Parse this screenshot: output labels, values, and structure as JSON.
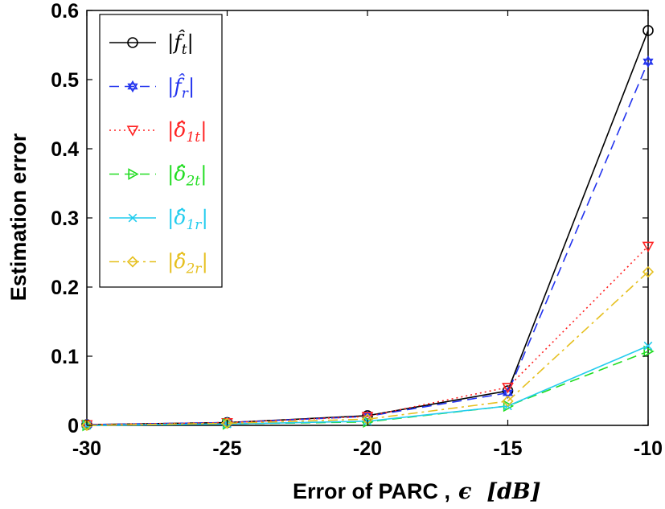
{
  "chart_data": {
    "type": "line",
    "xlabel": "Error of PARC ,",
    "xlabel_math": "ϵ  [dB]",
    "ylabel": "Estimation error",
    "x": [
      -30,
      -25,
      -20,
      -15,
      -10
    ],
    "xlim": [
      -30,
      -10
    ],
    "ylim": [
      0,
      0.6
    ],
    "xticks": [
      "-30",
      "-25",
      "-20",
      "-15",
      "-10"
    ],
    "yticks": [
      "0",
      "0.1",
      "0.2",
      "0.3",
      "0.4",
      "0.5",
      "0.6"
    ],
    "legend_position": "top-left",
    "grid": false,
    "series": [
      {
        "name": "|f̂t|",
        "base": "f̂",
        "sub": "t",
        "values": [
          0.001,
          0.004,
          0.014,
          0.05,
          0.571
        ],
        "color": "#000000",
        "dash": "solid",
        "marker": "circle"
      },
      {
        "name": "|f̂r|",
        "base": "f̂",
        "sub": "r",
        "values": [
          0.001,
          0.004,
          0.013,
          0.047,
          0.526
        ],
        "color": "#2233ee",
        "dash": "dashed",
        "marker": "hexagram"
      },
      {
        "name": "|δ̂1t|",
        "base": "δ̂",
        "sub": "1t",
        "values": [
          0.001,
          0.004,
          0.013,
          0.055,
          0.259
        ],
        "color": "#ff2222",
        "dash": "dotted",
        "marker": "triangle-down"
      },
      {
        "name": "|δ̂2t|",
        "base": "δ̂",
        "sub": "2t",
        "values": [
          0.0,
          0.002,
          0.005,
          0.028,
          0.107
        ],
        "color": "#22dd22",
        "dash": "dashed",
        "marker": "triangle-right"
      },
      {
        "name": "|δ̂1r|",
        "base": "δ̂",
        "sub": "1r",
        "values": [
          0.0,
          0.002,
          0.006,
          0.028,
          0.115
        ],
        "color": "#22ccee",
        "dash": "solid",
        "marker": "x"
      },
      {
        "name": "|δ̂2r|",
        "base": "δ̂",
        "sub": "2r",
        "values": [
          0.0,
          0.003,
          0.009,
          0.035,
          0.222
        ],
        "color": "#e6c020",
        "dash": "dashdot",
        "marker": "diamond"
      }
    ]
  }
}
